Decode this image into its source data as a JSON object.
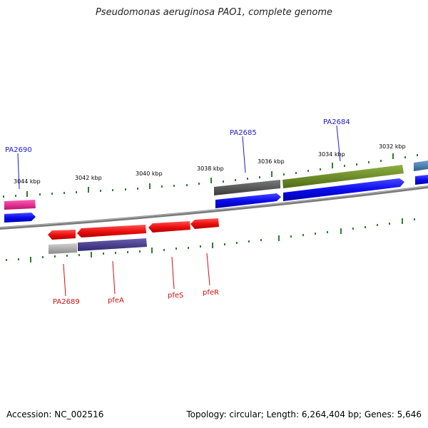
{
  "title": "Pseudomonas aeruginosa PAO1, complete genome",
  "accession": "Accession: NC_002516",
  "summary": "Topology: circular; Length: 6,264,404 bp; Genes: 5,646",
  "ticks": [
    "3044 kbp",
    "3042 kbp",
    "3040 kbp",
    "3038 kbp",
    "3036 kbp",
    "3034 kbp",
    "3032 kbp"
  ],
  "labels_top": [
    "PA2690",
    "PA2685",
    "PA2684"
  ],
  "labels_bottom": [
    "PA2689",
    "pfeA",
    "pfeS",
    "pfeR"
  ],
  "colors": {
    "backbone": "#8a8a8a",
    "forward_cds": "#0a0aee",
    "reverse_cds": "#ee1010",
    "tick": "#2f7d2f",
    "label_top": "#1a1acc",
    "label_bottom": "#cc1111",
    "pink_feature": "#e8198c",
    "dark_grey_feature": "#5a5a5a",
    "olive_feature": "#6b8e23",
    "steel_blue_feature": "#4682b4",
    "light_grey_feature": "#a8a8a8",
    "slate_feature": "#483d8b"
  }
}
